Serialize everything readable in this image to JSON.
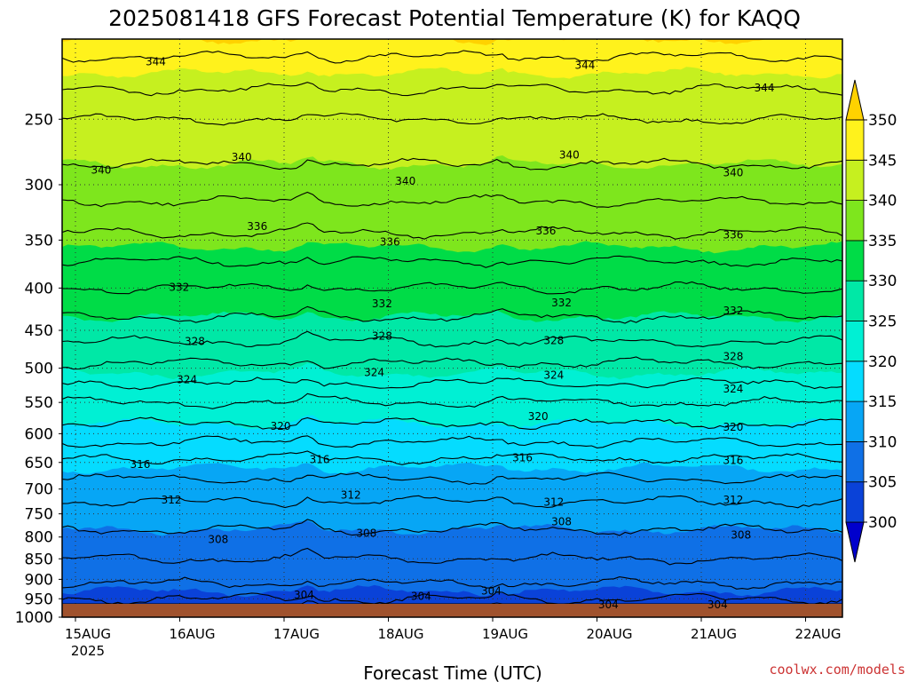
{
  "chart_data": {
    "type": "heatmap",
    "title": "2025081418 GFS Forecast Potential Temperature (K) for KAQQ",
    "xlabel": "Forecast Time (UTC)",
    "ylabel": "",
    "x_ticks": [
      "15AUG",
      "16AUG",
      "17AUG",
      "18AUG",
      "19AUG",
      "20AUG",
      "21AUG",
      "22AUG"
    ],
    "x_year": "2025",
    "y_ticks": [
      250,
      300,
      350,
      400,
      450,
      500,
      550,
      600,
      650,
      700,
      750,
      800,
      850,
      900,
      950,
      1000
    ],
    "y_range": [
      1000,
      200
    ],
    "y_scale": "log-pressure",
    "grid": true,
    "colorbar": {
      "levels": [
        300,
        305,
        310,
        315,
        320,
        325,
        330,
        335,
        340,
        345,
        350
      ],
      "labels": [
        "300",
        "305",
        "310",
        "315",
        "320",
        "325",
        "330",
        "335",
        "340",
        "345",
        "350"
      ],
      "colors": [
        "#0000cc",
        "#0a42d8",
        "#0f70e6",
        "#07a6f5",
        "#05dcff",
        "#00f0d4",
        "#00e8a6",
        "#00dc47",
        "#7ee61d",
        "#c6f01f",
        "#fff21c",
        "#ffd200"
      ]
    },
    "contour_interval": 2,
    "contour_labels": [
      {
        "value": 344,
        "x": 0.12,
        "p": 213
      },
      {
        "value": 344,
        "x": 0.67,
        "p": 215
      },
      {
        "value": 344,
        "x": 0.9,
        "p": 229
      },
      {
        "value": 340,
        "x": 0.05,
        "p": 288
      },
      {
        "value": 340,
        "x": 0.23,
        "p": 278
      },
      {
        "value": 340,
        "x": 0.44,
        "p": 297
      },
      {
        "value": 340,
        "x": 0.65,
        "p": 276
      },
      {
        "value": 340,
        "x": 0.86,
        "p": 290
      },
      {
        "value": 336,
        "x": 0.25,
        "p": 337
      },
      {
        "value": 336,
        "x": 0.42,
        "p": 352
      },
      {
        "value": 336,
        "x": 0.62,
        "p": 341
      },
      {
        "value": 336,
        "x": 0.86,
        "p": 345
      },
      {
        "value": 332,
        "x": 0.15,
        "p": 399
      },
      {
        "value": 332,
        "x": 0.41,
        "p": 418
      },
      {
        "value": 332,
        "x": 0.64,
        "p": 417
      },
      {
        "value": 332,
        "x": 0.86,
        "p": 426
      },
      {
        "value": 328,
        "x": 0.17,
        "p": 464
      },
      {
        "value": 328,
        "x": 0.41,
        "p": 457
      },
      {
        "value": 328,
        "x": 0.63,
        "p": 463
      },
      {
        "value": 328,
        "x": 0.86,
        "p": 484
      },
      {
        "value": 324,
        "x": 0.16,
        "p": 516
      },
      {
        "value": 324,
        "x": 0.4,
        "p": 506
      },
      {
        "value": 324,
        "x": 0.63,
        "p": 510
      },
      {
        "value": 324,
        "x": 0.86,
        "p": 530
      },
      {
        "value": 320,
        "x": 0.28,
        "p": 588
      },
      {
        "value": 320,
        "x": 0.61,
        "p": 572
      },
      {
        "value": 320,
        "x": 0.86,
        "p": 589
      },
      {
        "value": 316,
        "x": 0.1,
        "p": 654
      },
      {
        "value": 316,
        "x": 0.33,
        "p": 645
      },
      {
        "value": 316,
        "x": 0.59,
        "p": 642
      },
      {
        "value": 316,
        "x": 0.86,
        "p": 646
      },
      {
        "value": 312,
        "x": 0.14,
        "p": 722
      },
      {
        "value": 312,
        "x": 0.37,
        "p": 712
      },
      {
        "value": 312,
        "x": 0.63,
        "p": 726
      },
      {
        "value": 312,
        "x": 0.86,
        "p": 722
      },
      {
        "value": 308,
        "x": 0.2,
        "p": 805
      },
      {
        "value": 308,
        "x": 0.39,
        "p": 792
      },
      {
        "value": 308,
        "x": 0.64,
        "p": 767
      },
      {
        "value": 308,
        "x": 0.87,
        "p": 796
      },
      {
        "value": 304,
        "x": 0.31,
        "p": 940
      },
      {
        "value": 304,
        "x": 0.46,
        "p": 944
      },
      {
        "value": 304,
        "x": 0.55,
        "p": 930
      },
      {
        "value": 304,
        "x": 0.7,
        "p": 966
      },
      {
        "value": 304,
        "x": 0.84,
        "p": 966
      }
    ]
  },
  "credit": "coolwx.com/models"
}
